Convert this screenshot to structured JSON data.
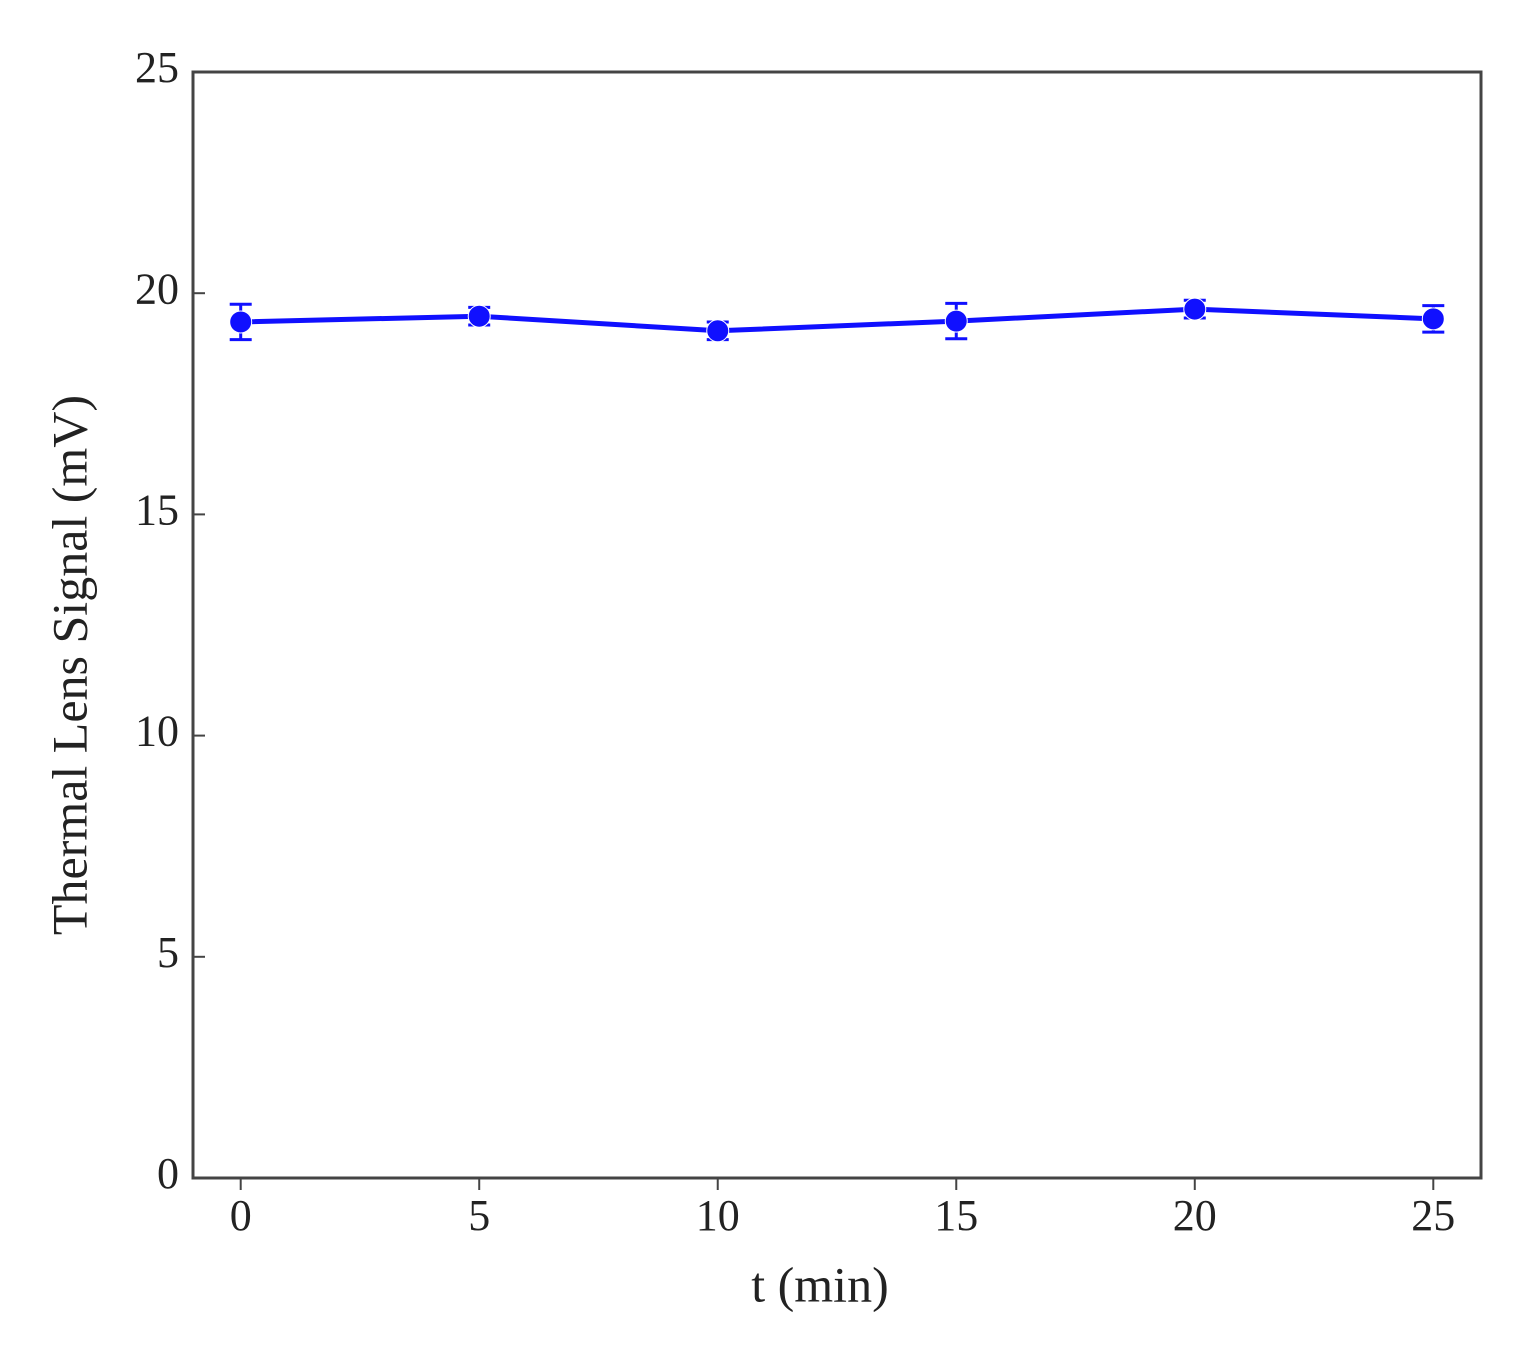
{
  "chart_data": {
    "type": "line",
    "x_label": "t (min)",
    "y_label": "Thermal Lens Signal (mV)",
    "x": [
      0,
      5,
      10,
      15,
      20,
      25
    ],
    "series": [
      {
        "color": "#1010ff",
        "values": [
          19.35,
          19.48,
          19.15,
          19.37,
          19.64,
          19.42
        ],
        "errors": [
          0.4,
          0.2,
          0.2,
          0.4,
          0.2,
          0.3
        ]
      }
    ],
    "xlim": [
      -1,
      26
    ],
    "xticks": [
      0,
      5,
      10,
      15,
      20,
      25
    ],
    "ylim": [
      0,
      25
    ],
    "yticks": [
      0,
      5,
      10,
      15,
      20,
      25
    ],
    "grid": false
  }
}
